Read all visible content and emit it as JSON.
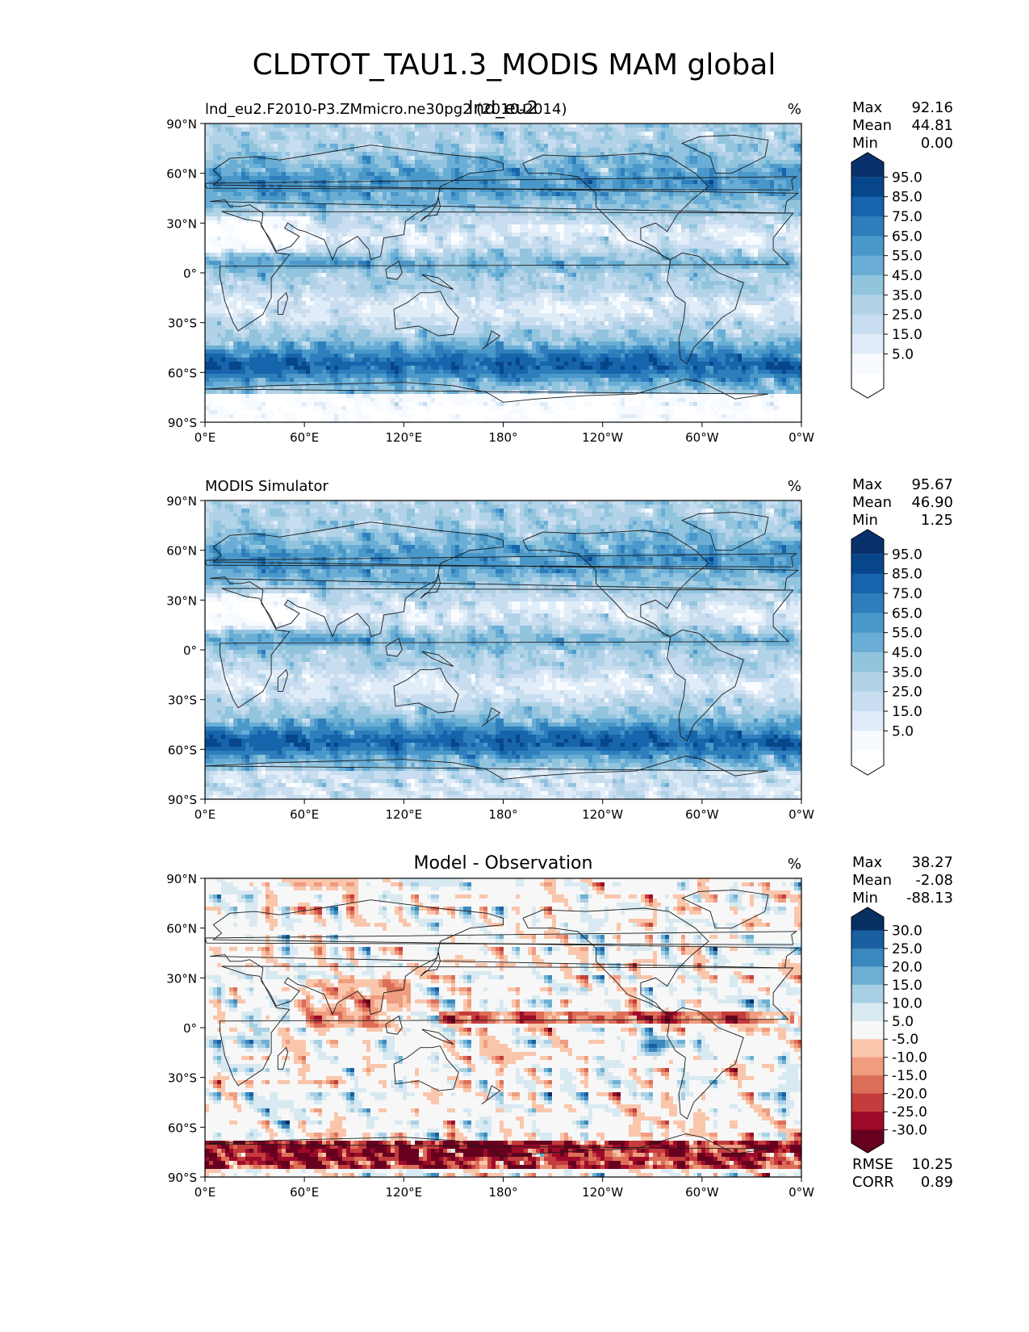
{
  "figure": {
    "title": "CLDTOT_TAU1.3_MODIS MAM global"
  },
  "colors": {
    "levels_blues": [
      "#ffffff",
      "#f7fbff",
      "#e0ecf7",
      "#c9ddf0",
      "#b1d2e7",
      "#92c4de",
      "#6aaed6",
      "#4a98c9",
      "#2e7ebc",
      "#1664ab",
      "#08468b",
      "#08306b"
    ],
    "levels_div": [
      "#67001f",
      "#9e0b29",
      "#c43c3c",
      "#dc6e58",
      "#ef9c7f",
      "#fac6ab",
      "#f7f7f7",
      "#d8e9f1",
      "#a8d0e4",
      "#6dafd3",
      "#3a88be",
      "#1a5fa0",
      "#053061"
    ],
    "coast": "#1a1a1a"
  },
  "lon_ticks": [
    "0°E",
    "60°E",
    "120°E",
    "180°",
    "120°W",
    "60°W",
    "0°W"
  ],
  "lat_ticks": [
    "90°N",
    "60°N",
    "30°N",
    "0°",
    "30°S",
    "60°S",
    "90°S"
  ],
  "panels": [
    {
      "left_title": "lnd_eu2.F2010-P3.ZMmicro.ne30pg2 (2010-2014)",
      "center_title": "lnd_eu2",
      "units": "%",
      "stats": [
        {
          "label": "Max",
          "value": "92.16"
        },
        {
          "label": "Mean",
          "value": "44.81"
        },
        {
          "label": "Min",
          "value": "0.00"
        }
      ],
      "cbar_labels": [
        "95.0",
        "85.0",
        "75.0",
        "65.0",
        "55.0",
        "45.0",
        "35.0",
        "25.0",
        "15.0",
        "5.0"
      ],
      "cbar_kind": "blues"
    },
    {
      "left_title": "MODIS Simulator",
      "center_title": "",
      "units": "%",
      "stats": [
        {
          "label": "Max",
          "value": "95.67"
        },
        {
          "label": "Mean",
          "value": "46.90"
        },
        {
          "label": "Min",
          "value": "1.25"
        }
      ],
      "cbar_labels": [
        "95.0",
        "85.0",
        "75.0",
        "65.0",
        "55.0",
        "45.0",
        "35.0",
        "25.0",
        "15.0",
        "5.0"
      ],
      "cbar_kind": "blues"
    },
    {
      "left_title": "",
      "center_title": "Model - Observation",
      "units": "%",
      "stats": [
        {
          "label": "Max",
          "value": "38.27"
        },
        {
          "label": "Mean",
          "value": "-2.08"
        },
        {
          "label": "Min",
          "value": "-88.13"
        }
      ],
      "cbar_labels": [
        "30.0",
        "25.0",
        "20.0",
        "15.0",
        "10.0",
        "5.0",
        "-5.0",
        "-10.0",
        "-15.0",
        "-20.0",
        "-25.0",
        "-30.0"
      ],
      "cbar_kind": "div",
      "extra_stats": [
        {
          "label": "RMSE",
          "value": "10.25"
        },
        {
          "label": "CORR",
          "value": "0.89"
        }
      ]
    }
  ],
  "chart_data": [
    {
      "type": "heatmap",
      "title": "lnd_eu2",
      "subtitle": "lnd_eu2.F2010-P3.ZMmicro.ne30pg2 (2010-2014)",
      "units": "%",
      "x_ticks": [
        "0°E",
        "60°E",
        "120°E",
        "180°",
        "120°W",
        "60°W",
        "0°W"
      ],
      "y_ticks": [
        "90°N",
        "60°N",
        "30°N",
        "0°",
        "30°S",
        "60°S",
        "90°S"
      ],
      "colorbar_levels": [
        5,
        15,
        25,
        35,
        45,
        55,
        65,
        75,
        85,
        95
      ],
      "max": 92.16,
      "mean": 44.81,
      "min": 0.0
    },
    {
      "type": "heatmap",
      "title": "MODIS Simulator",
      "units": "%",
      "x_ticks": [
        "0°E",
        "60°E",
        "120°E",
        "180°",
        "120°W",
        "60°W",
        "0°W"
      ],
      "y_ticks": [
        "90°N",
        "60°N",
        "30°N",
        "0°",
        "30°S",
        "60°S",
        "90°S"
      ],
      "colorbar_levels": [
        5,
        15,
        25,
        35,
        45,
        55,
        65,
        75,
        85,
        95
      ],
      "max": 95.67,
      "mean": 46.9,
      "min": 1.25
    },
    {
      "type": "heatmap",
      "title": "Model - Observation",
      "units": "%",
      "x_ticks": [
        "0°E",
        "60°E",
        "120°E",
        "180°",
        "120°W",
        "60°W",
        "0°W"
      ],
      "y_ticks": [
        "90°N",
        "60°N",
        "30°N",
        "0°",
        "30°S",
        "60°S",
        "90°S"
      ],
      "colorbar_levels": [
        -30,
        -25,
        -20,
        -15,
        -10,
        -5,
        5,
        10,
        15,
        20,
        25,
        30
      ],
      "max": 38.27,
      "mean": -2.08,
      "min": -88.13,
      "rmse": 10.25,
      "corr": 0.89
    }
  ]
}
